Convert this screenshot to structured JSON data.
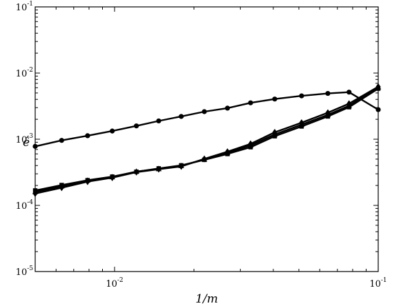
{
  "chart_data": {
    "type": "line",
    "xlabel": "1/m",
    "ylabel": "ê",
    "xscale": "log",
    "yscale": "log",
    "xlim": [
      0.005,
      0.1
    ],
    "ylim": [
      1e-05,
      0.1
    ],
    "grid": false,
    "x_ticks": [
      {
        "value": 0.01,
        "base": "10",
        "exp": "-2"
      },
      {
        "value": 0.1,
        "base": "10",
        "exp": "-1"
      }
    ],
    "y_ticks": [
      {
        "value": 1e-05,
        "base": "10",
        "exp": "-5"
      },
      {
        "value": 0.0001,
        "base": "10",
        "exp": "-4"
      },
      {
        "value": 0.001,
        "base": "10",
        "exp": "-3"
      },
      {
        "value": 0.01,
        "base": "10",
        "exp": "-2"
      },
      {
        "value": 0.1,
        "base": "10",
        "exp": "-1"
      }
    ],
    "series": [
      {
        "marker": "circle",
        "x": [
          0.005,
          0.0063,
          0.0079,
          0.0098,
          0.0121,
          0.0147,
          0.0179,
          0.0219,
          0.0268,
          0.0328,
          0.0405,
          0.0512,
          0.0644,
          0.0775,
          0.1
        ],
        "y": [
          0.00078,
          0.00096,
          0.00113,
          0.00133,
          0.00159,
          0.00189,
          0.00221,
          0.00261,
          0.00295,
          0.00355,
          0.00405,
          0.00452,
          0.00492,
          0.00515,
          0.0028
        ]
      },
      {
        "marker": "square",
        "x": [
          0.005,
          0.0063,
          0.0079,
          0.0098,
          0.0121,
          0.0147,
          0.0179,
          0.0219,
          0.0268,
          0.0328,
          0.0405,
          0.0512,
          0.0644,
          0.0775,
          0.1
        ],
        "y": [
          0.000168,
          0.000203,
          0.00024,
          0.000272,
          0.000322,
          0.000362,
          0.000403,
          0.000488,
          0.000598,
          0.000758,
          0.00111,
          0.00156,
          0.00221,
          0.00305,
          0.00582
        ]
      },
      {
        "marker": "triangle",
        "x": [
          0.005,
          0.0063,
          0.0079,
          0.0098,
          0.0121,
          0.0147,
          0.0179,
          0.0219,
          0.0268,
          0.0328,
          0.0405,
          0.0512,
          0.0644,
          0.0775,
          0.1
        ],
        "y": [
          0.00016,
          0.000195,
          0.000238,
          0.000268,
          0.000325,
          0.000355,
          0.000395,
          0.000495,
          0.00062,
          0.000805,
          0.00118,
          0.00166,
          0.00234,
          0.0032,
          0.0061
        ]
      },
      {
        "marker": "diamond",
        "x": [
          0.005,
          0.0063,
          0.0079,
          0.0098,
          0.0121,
          0.0147,
          0.0179,
          0.0219,
          0.0268,
          0.0328,
          0.0405,
          0.0512,
          0.0644,
          0.0775,
          0.1
        ],
        "y": [
          0.000151,
          0.000185,
          0.000228,
          0.000262,
          0.000318,
          0.000352,
          0.000388,
          0.000505,
          0.000648,
          0.000852,
          0.00127,
          0.00178,
          0.00252,
          0.00345,
          0.00622
        ]
      }
    ]
  }
}
